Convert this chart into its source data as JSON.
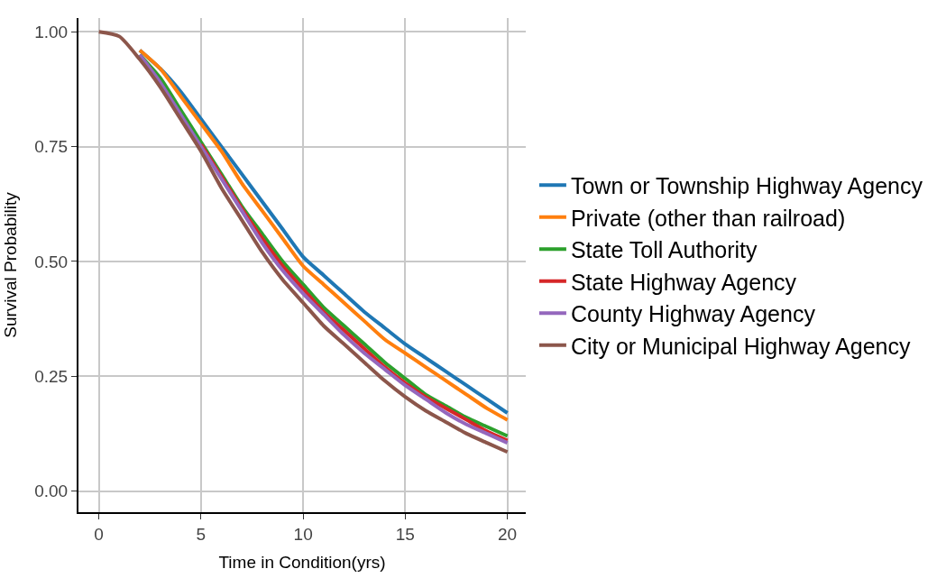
{
  "chart_data": {
    "type": "line",
    "xlabel": "Time in Condition(yrs)",
    "ylabel": "Survival Probability",
    "x": [
      0,
      1,
      2,
      3,
      4,
      5,
      6,
      7,
      8,
      9,
      10,
      11,
      12,
      13,
      14,
      15,
      16,
      17,
      18,
      19,
      20
    ],
    "xlim": [
      -1,
      20.9
    ],
    "xticks": [
      0,
      5,
      10,
      15,
      20
    ],
    "ylim": [
      -0.046,
      1.03
    ],
    "yticks": [
      {
        "value": 0,
        "label": "0.00"
      },
      {
        "value": 0.25,
        "label": "0.25"
      },
      {
        "value": 0.5,
        "label": "0.50"
      },
      {
        "value": 0.75,
        "label": "0.75"
      },
      {
        "value": 1,
        "label": "1.00"
      }
    ],
    "grid": true,
    "legend": "right",
    "marker": "none",
    "line_style": "solid",
    "series": [
      {
        "name": "Town or Township Highway Agency",
        "color": "#1f77b4",
        "values": [
          null,
          null,
          0.96,
          0.92,
          0.87,
          0.81,
          0.75,
          0.69,
          0.63,
          0.57,
          0.51,
          0.47,
          0.43,
          0.39,
          0.355,
          0.32,
          0.29,
          0.26,
          0.23,
          0.2,
          0.17
        ]
      },
      {
        "name": "Private (other than railroad)",
        "color": "#ff7f0e",
        "values": [
          null,
          null,
          0.96,
          0.92,
          0.86,
          0.8,
          0.74,
          0.67,
          0.61,
          0.55,
          0.49,
          0.45,
          0.41,
          0.37,
          0.33,
          0.3,
          0.27,
          0.24,
          0.21,
          0.18,
          0.155
        ]
      },
      {
        "name": "State Toll Authority",
        "color": "#2ca02c",
        "values": [
          null,
          null,
          0.95,
          0.9,
          0.83,
          0.76,
          0.69,
          0.62,
          0.56,
          0.5,
          0.45,
          0.4,
          0.36,
          0.32,
          0.28,
          0.245,
          0.21,
          0.185,
          0.16,
          0.14,
          0.12
        ]
      },
      {
        "name": "State Highway Agency",
        "color": "#d62728",
        "values": [
          null,
          null,
          null,
          null,
          null,
          0.755,
          0.685,
          0.615,
          0.55,
          0.49,
          0.44,
          0.39,
          0.35,
          0.31,
          0.27,
          0.235,
          0.205,
          0.18,
          0.155,
          0.13,
          0.11
        ]
      },
      {
        "name": "County Highway Agency",
        "color": "#9467bd",
        "values": [
          null,
          null,
          0.95,
          0.89,
          0.82,
          0.75,
          0.68,
          0.61,
          0.54,
          0.48,
          0.43,
          0.385,
          0.34,
          0.3,
          0.265,
          0.23,
          0.2,
          0.17,
          0.145,
          0.125,
          0.105
        ]
      },
      {
        "name": "City or Municipal Highway Agency",
        "color": "#8c564b",
        "values": [
          1,
          0.99,
          0.94,
          0.88,
          0.81,
          0.74,
          0.66,
          0.59,
          0.52,
          0.46,
          0.41,
          0.36,
          0.32,
          0.28,
          0.24,
          0.205,
          0.175,
          0.15,
          0.125,
          0.105,
          0.085
        ]
      }
    ]
  }
}
